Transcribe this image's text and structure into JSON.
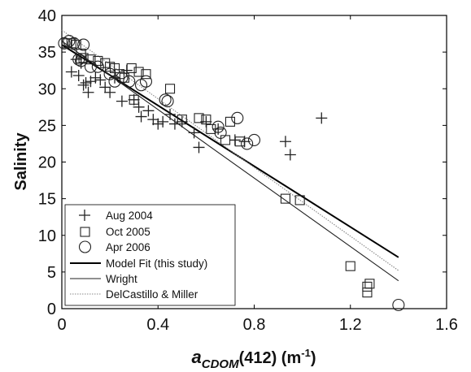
{
  "chart_data": {
    "type": "scatter",
    "title": "",
    "xlabel": {
      "main": "a",
      "sub": "CDOM",
      "rest": "(412) (m",
      "sup": "-1",
      "close": ")"
    },
    "ylabel": "Salinity",
    "xlim": [
      0,
      1.6
    ],
    "ylim": [
      0,
      40
    ],
    "xticks": [
      0,
      0.4,
      0.8,
      1.2,
      1.6
    ],
    "xtick_labels": [
      "0",
      "0.4",
      "0.8",
      "1.2",
      "1.6"
    ],
    "yticks": [
      0,
      5,
      10,
      15,
      20,
      25,
      30,
      35,
      40
    ],
    "ytick_labels": [
      "0",
      "5",
      "10",
      "15",
      "20",
      "25",
      "30",
      "35",
      "40"
    ],
    "grid": false,
    "legend_position": "bottom-left",
    "series": [
      {
        "name": "Aug 2004",
        "marker": "plus",
        "points": [
          [
            0.04,
            32.3
          ],
          [
            0.07,
            31.8
          ],
          [
            0.06,
            34.0
          ],
          [
            0.08,
            33.5
          ],
          [
            0.09,
            30.5
          ],
          [
            0.1,
            30.8
          ],
          [
            0.11,
            29.5
          ],
          [
            0.12,
            31.0
          ],
          [
            0.14,
            31.5
          ],
          [
            0.16,
            31.2
          ],
          [
            0.18,
            30.2
          ],
          [
            0.2,
            29.5
          ],
          [
            0.22,
            31.5
          ],
          [
            0.25,
            28.3
          ],
          [
            0.27,
            32.5
          ],
          [
            0.3,
            28.5
          ],
          [
            0.32,
            27.5
          ],
          [
            0.33,
            26.2
          ],
          [
            0.36,
            27.0
          ],
          [
            0.38,
            25.8
          ],
          [
            0.4,
            25.2
          ],
          [
            0.42,
            25.5
          ],
          [
            0.45,
            26.5
          ],
          [
            0.47,
            25.2
          ],
          [
            0.5,
            25.5
          ],
          [
            0.55,
            24.0
          ],
          [
            0.57,
            22.0
          ],
          [
            0.6,
            25.5
          ],
          [
            0.65,
            24.5
          ],
          [
            0.72,
            23.0
          ],
          [
            0.76,
            22.8
          ],
          [
            0.93,
            22.8
          ],
          [
            0.95,
            21.0
          ],
          [
            1.08,
            26.0
          ]
        ]
      },
      {
        "name": "Oct 2005",
        "marker": "square",
        "points": [
          [
            0.02,
            36.2
          ],
          [
            0.04,
            36.2
          ],
          [
            0.06,
            36.0
          ],
          [
            0.08,
            34.8
          ],
          [
            0.09,
            34.2
          ],
          [
            0.12,
            34.0
          ],
          [
            0.15,
            33.8
          ],
          [
            0.18,
            33.5
          ],
          [
            0.2,
            33.0
          ],
          [
            0.22,
            32.8
          ],
          [
            0.24,
            32.0
          ],
          [
            0.26,
            31.5
          ],
          [
            0.29,
            32.8
          ],
          [
            0.3,
            28.5
          ],
          [
            0.32,
            32.3
          ],
          [
            0.35,
            32.0
          ],
          [
            0.45,
            30.0
          ],
          [
            0.5,
            25.8
          ],
          [
            0.57,
            26.0
          ],
          [
            0.6,
            25.8
          ],
          [
            0.62,
            24.5
          ],
          [
            0.68,
            23.0
          ],
          [
            0.7,
            25.5
          ],
          [
            0.74,
            22.8
          ],
          [
            0.93,
            15.0
          ],
          [
            0.99,
            14.8
          ],
          [
            1.2,
            5.8
          ],
          [
            1.27,
            2.2
          ],
          [
            1.27,
            3.0
          ],
          [
            1.28,
            3.4
          ]
        ]
      },
      {
        "name": "Apr 2006",
        "marker": "circle",
        "points": [
          [
            0.01,
            36.2
          ],
          [
            0.03,
            36.5
          ],
          [
            0.05,
            36.2
          ],
          [
            0.07,
            34.0
          ],
          [
            0.08,
            33.8
          ],
          [
            0.09,
            36.0
          ],
          [
            0.12,
            33.0
          ],
          [
            0.15,
            33.0
          ],
          [
            0.2,
            32.0
          ],
          [
            0.22,
            31.0
          ],
          [
            0.25,
            31.5
          ],
          [
            0.28,
            31.0
          ],
          [
            0.33,
            30.5
          ],
          [
            0.35,
            31.0
          ],
          [
            0.43,
            28.5
          ],
          [
            0.44,
            28.3
          ],
          [
            0.65,
            24.8
          ],
          [
            0.66,
            24.0
          ],
          [
            0.73,
            26.0
          ],
          [
            0.77,
            22.5
          ],
          [
            0.8,
            23.0
          ],
          [
            1.4,
            0.5
          ]
        ]
      }
    ],
    "lines": [
      {
        "name": "Model Fit (this study)",
        "style": "solid",
        "width": 2.0,
        "color": "#000000",
        "points": [
          [
            0.0,
            36.0
          ],
          [
            1.4,
            7.0
          ]
        ]
      },
      {
        "name": "Wright",
        "style": "solid",
        "width": 1.1,
        "color": "#222222",
        "points": [
          [
            0.0,
            36.5
          ],
          [
            1.4,
            3.8
          ]
        ]
      },
      {
        "name": "DelCastillo & Miller",
        "style": "dotted",
        "width": 1.1,
        "color": "#888888",
        "points": [
          [
            0.0,
            38.0
          ],
          [
            1.4,
            5.2
          ]
        ]
      }
    ]
  }
}
